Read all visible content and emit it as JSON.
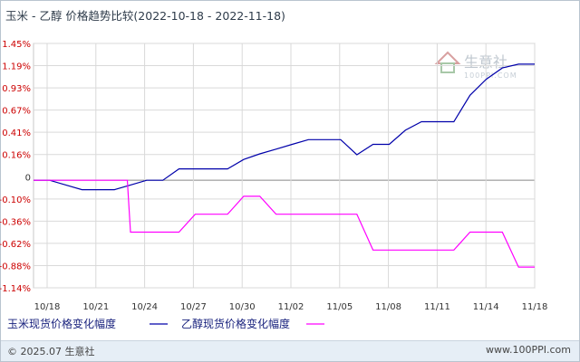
{
  "title": "玉米 - 乙醇 价格趋势比较(2022-10-18 - 2022-11-18)",
  "watermark": {
    "text": "生意社",
    "sub": "100PPI.COM"
  },
  "footer": {
    "copyright": "© 2025.07 生意社",
    "site": "www.100PPI.com"
  },
  "colors": {
    "series1": "#0000aa",
    "series2": "#ff00ff",
    "positive_tick": "#cc0000",
    "negative_tick": "#cc0000",
    "grid": "#d9d9d9",
    "zero": "#888888"
  },
  "chart_data": {
    "type": "line",
    "x_ticks": [
      "10/18",
      "10/21",
      "10/24",
      "10/27",
      "10/30",
      "11/02",
      "11/05",
      "11/08",
      "11/11",
      "11/14",
      "11/18"
    ],
    "y_ticks": [
      "1.45%",
      "1.19%",
      "0.93%",
      "0.67%",
      "0.41%",
      "0.16%",
      "0",
      "-0.10%",
      "-0.36%",
      "-0.62%",
      "-0.88%",
      "-1.14%"
    ],
    "ylim": [
      -1.14,
      1.45
    ],
    "series": [
      {
        "name": "玉米现货价格变化幅度",
        "x": [
          0,
          1,
          2,
          3,
          4,
          5,
          6,
          7,
          8,
          9,
          10,
          11,
          12,
          13,
          14,
          15,
          16,
          17,
          18,
          19,
          20,
          21,
          22,
          23,
          24,
          25,
          26,
          27,
          28,
          29,
          30,
          31
        ],
        "y": [
          0,
          0,
          -0.05,
          -0.1,
          -0.1,
          -0.1,
          -0.05,
          0,
          0,
          0.12,
          0.12,
          0.12,
          0.12,
          0.22,
          0.28,
          0.33,
          0.38,
          0.43,
          0.43,
          0.43,
          0.27,
          0.38,
          0.38,
          0.53,
          0.62,
          0.62,
          0.62,
          0.9,
          1.07,
          1.19,
          1.23,
          1.23
        ]
      },
      {
        "name": "乙醇现货价格变化幅度",
        "x": [
          0,
          1,
          2,
          3,
          4,
          5,
          5.8,
          6,
          7,
          8,
          9,
          10,
          11,
          12,
          13,
          14,
          15,
          16,
          17,
          18,
          19,
          20,
          21,
          22,
          23,
          24,
          25,
          26,
          27,
          28,
          29,
          30,
          31
        ],
        "y": [
          0,
          0,
          0,
          0,
          0,
          0,
          0,
          -0.55,
          -0.55,
          -0.55,
          -0.55,
          -0.36,
          -0.36,
          -0.36,
          -0.17,
          -0.17,
          -0.36,
          -0.36,
          -0.36,
          -0.36,
          -0.36,
          -0.36,
          -0.74,
          -0.74,
          -0.74,
          -0.74,
          -0.74,
          -0.74,
          -0.55,
          -0.55,
          -0.55,
          -0.92,
          -0.92
        ]
      }
    ],
    "x_range": [
      0,
      31
    ],
    "grid": true,
    "legend_position": "bottom-left"
  }
}
